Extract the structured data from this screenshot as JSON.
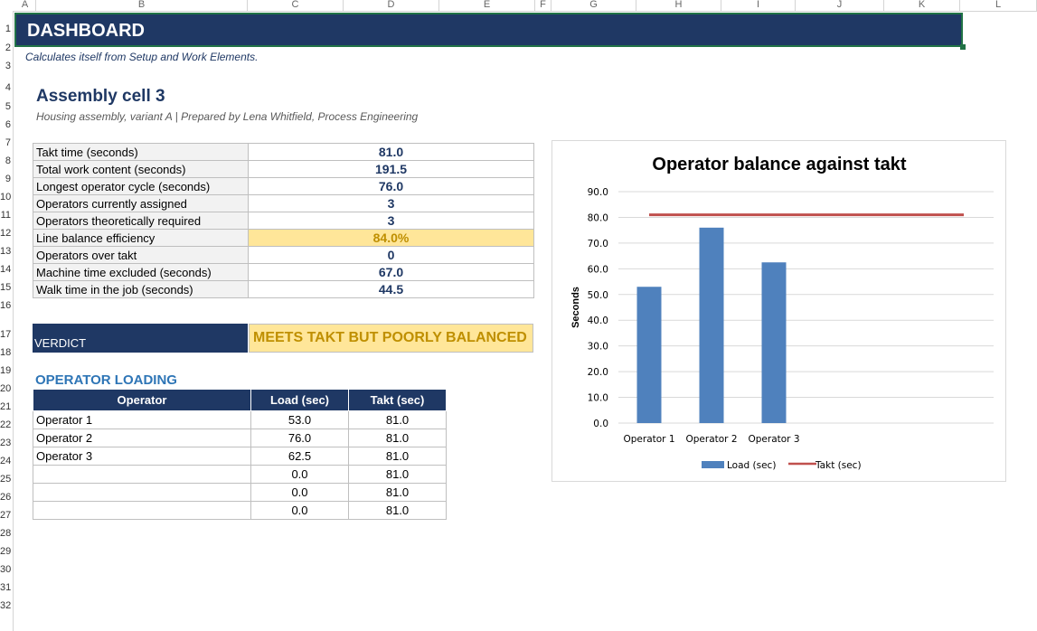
{
  "sheet": {
    "columns": [
      "A",
      "B",
      "C",
      "D",
      "E",
      "F",
      "G",
      "H",
      "I",
      "J",
      "K",
      "L"
    ],
    "rows": [
      "1",
      "2",
      "3",
      "4",
      "5",
      "6",
      "7",
      "8",
      "9",
      "10",
      "11",
      "12",
      "13",
      "14",
      "15",
      "16",
      "17",
      "18",
      "19",
      "20",
      "21",
      "22",
      "23",
      "24",
      "25",
      "26",
      "27",
      "28",
      "29",
      "30",
      "31",
      "32"
    ]
  },
  "header": {
    "title": "DASHBOARD",
    "subtitle": "Calculates itself from Setup and Work Elements."
  },
  "cell": {
    "title": "Assembly cell 3",
    "prepared": "Housing assembly, variant A  |  Prepared by Lena Whitfield, Process Engineering"
  },
  "kpis": [
    {
      "label": "Takt time (seconds)",
      "value": "81.0"
    },
    {
      "label": "Total work content (seconds)",
      "value": "191.5"
    },
    {
      "label": "Longest operator cycle (seconds)",
      "value": "76.0"
    },
    {
      "label": "Operators currently assigned",
      "value": "3"
    },
    {
      "label": "Operators theoretically required",
      "value": "3"
    },
    {
      "label": "Line balance efficiency",
      "value": "84.0%"
    },
    {
      "label": "Operators over takt",
      "value": "0"
    },
    {
      "label": "Machine time excluded (seconds)",
      "value": "67.0"
    },
    {
      "label": "Walk time in the job (seconds)",
      "value": "44.5"
    }
  ],
  "verdict": {
    "label": "VERDICT",
    "value": "MEETS TAKT BUT POORLY BALANCED"
  },
  "loading": {
    "title": "OPERATOR LOADING",
    "headers": [
      "Operator",
      "Load (sec)",
      "Takt (sec)"
    ],
    "rows": [
      [
        "Operator 1",
        "53.0",
        "81.0"
      ],
      [
        "Operator 2",
        "76.0",
        "81.0"
      ],
      [
        "Operator 3",
        "62.5",
        "81.0"
      ],
      [
        "",
        "0.0",
        "81.0"
      ],
      [
        "",
        "0.0",
        "81.0"
      ],
      [
        "",
        "0.0",
        "81.0"
      ]
    ]
  },
  "colors": {
    "navy": "#1f3864",
    "highlight": "#ffe699",
    "gold": "#bf8f00",
    "bar": "#4f81bd",
    "takt_line": "#c0504d"
  },
  "chart_data": {
    "type": "bar",
    "title": "Operator balance against takt",
    "ylabel": "Seconds",
    "xlabel": "",
    "categories": [
      "Operator 1",
      "Operator 2",
      "Operator 3"
    ],
    "series": [
      {
        "name": "Load (sec)",
        "type": "bar",
        "values": [
          53.0,
          76.0,
          62.5
        ]
      },
      {
        "name": "Takt (sec)",
        "type": "line",
        "values": [
          81.0,
          81.0,
          81.0
        ]
      }
    ],
    "ylim": [
      0,
      90
    ],
    "yticks": [
      "0.0",
      "10.0",
      "20.0",
      "30.0",
      "40.0",
      "50.0",
      "60.0",
      "70.0",
      "80.0",
      "90.0"
    ],
    "grid": true,
    "legend": "bottom"
  }
}
